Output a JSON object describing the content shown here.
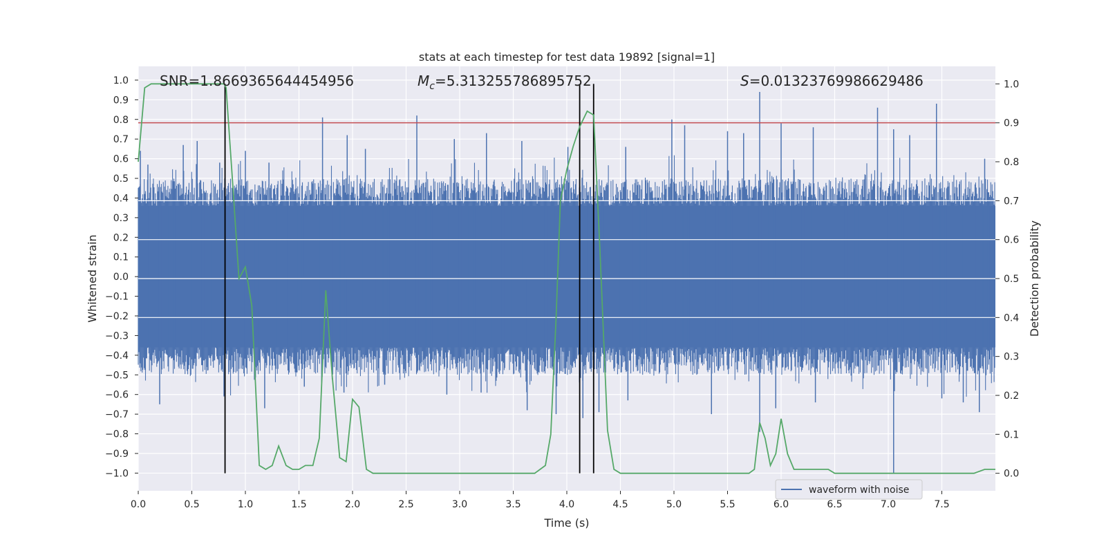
{
  "chart_data": {
    "type": "line",
    "title": "stats at each timestep for test data 19892 [signal=1]",
    "xlabel": "Time (s)",
    "ylabel": "Whitened strain",
    "y2label": "Detection probability",
    "xlim": [
      0.0,
      8.0
    ],
    "ylim": [
      -1.09,
      1.07
    ],
    "y2lim": [
      -0.045,
      1.045
    ],
    "xticks": [
      "0.0",
      "0.5",
      "1.0",
      "1.5",
      "2.0",
      "2.5",
      "3.0",
      "3.5",
      "4.0",
      "4.5",
      "5.0",
      "5.5",
      "6.0",
      "6.5",
      "7.0",
      "7.5"
    ],
    "yticks": [
      "1.0",
      "0.9",
      "0.8",
      "0.7",
      "0.6",
      "0.5",
      "0.4",
      "0.3",
      "0.2",
      "0.1",
      "0.0",
      "-0.1",
      "-0.2",
      "-0.3",
      "-0.4",
      "-0.5",
      "-0.6",
      "-0.7",
      "-0.8",
      "-0.9",
      "-1.0"
    ],
    "y2ticks": [
      "1.0",
      "0.9",
      "0.8",
      "0.7",
      "0.6",
      "0.5",
      "0.4",
      "0.3",
      "0.2",
      "0.1",
      "0.0"
    ],
    "annotations": {
      "snr": "SNR=1.8669365644454956",
      "mc_symbol": "M",
      "mc_sub": "c",
      "mc_value": "=5.313255786895752",
      "s_symbol": "S",
      "s_value": "=0.01323769986629486"
    },
    "legend": {
      "label": "waveform with noise",
      "position": "lower-right"
    },
    "threshold": {
      "value": 0.9,
      "color": "#c44e52"
    },
    "vlines": [
      0.81,
      4.12,
      4.25
    ],
    "waveform": {
      "name": "waveform with noise",
      "color": "#4c72b0",
      "core_envelope": 0.36,
      "peaks": [
        [
          0.02,
          0.64
        ],
        [
          0.09,
          0.57
        ],
        [
          0.2,
          -0.65
        ],
        [
          0.42,
          0.67
        ],
        [
          0.55,
          0.69
        ],
        [
          0.8,
          -0.61
        ],
        [
          0.76,
          0.58
        ],
        [
          1.0,
          0.64
        ],
        [
          1.18,
          -0.67
        ],
        [
          1.22,
          0.58
        ],
        [
          1.55,
          -0.56
        ],
        [
          1.72,
          0.81
        ],
        [
          1.95,
          0.72
        ],
        [
          1.92,
          -0.59
        ],
        [
          2.12,
          0.65
        ],
        [
          2.3,
          -0.55
        ],
        [
          2.6,
          0.82
        ],
        [
          2.88,
          -0.6
        ],
        [
          2.95,
          0.7
        ],
        [
          3.2,
          -0.59
        ],
        [
          3.25,
          0.73
        ],
        [
          3.58,
          0.69
        ],
        [
          3.63,
          -0.68
        ],
        [
          3.9,
          -0.7
        ],
        [
          4.01,
          0.66
        ],
        [
          4.15,
          -0.72
        ],
        [
          4.3,
          -0.69
        ],
        [
          4.57,
          -0.63
        ],
        [
          4.55,
          0.66
        ],
        [
          4.98,
          0.8
        ],
        [
          5.1,
          0.77
        ],
        [
          5.35,
          -0.7
        ],
        [
          5.5,
          0.74
        ],
        [
          5.65,
          0.73
        ],
        [
          5.8,
          0.94
        ],
        [
          5.8,
          -0.79
        ],
        [
          5.95,
          -0.67
        ],
        [
          6.0,
          0.78
        ],
        [
          6.3,
          0.76
        ],
        [
          6.32,
          -0.64
        ],
        [
          6.9,
          0.86
        ],
        [
          7.05,
          -1.0
        ],
        [
          7.05,
          0.75
        ],
        [
          7.2,
          0.72
        ],
        [
          7.45,
          0.88
        ],
        [
          7.5,
          -0.62
        ],
        [
          7.7,
          -0.64
        ],
        [
          7.85,
          -0.69
        ],
        [
          7.9,
          0.6
        ]
      ]
    },
    "probability": {
      "name": "detection probability",
      "color": "#55a868",
      "x": [
        0.0,
        0.06,
        0.12,
        0.2,
        0.4,
        0.6,
        0.8,
        0.82,
        0.88,
        0.94,
        1.0,
        1.06,
        1.13,
        1.19,
        1.25,
        1.31,
        1.38,
        1.44,
        1.5,
        1.56,
        1.63,
        1.69,
        1.75,
        1.81,
        1.88,
        1.94,
        2.0,
        2.06,
        2.13,
        2.19,
        2.3,
        2.5,
        2.7,
        2.85,
        3.0,
        3.2,
        3.4,
        3.6,
        3.7,
        3.75,
        3.8,
        3.85,
        3.9,
        3.94,
        4.0,
        4.06,
        4.12,
        4.19,
        4.25,
        4.31,
        4.38,
        4.44,
        4.5,
        4.6,
        4.8,
        5.0,
        5.2,
        5.4,
        5.6,
        5.7,
        5.75,
        5.8,
        5.85,
        5.9,
        5.95,
        6.0,
        6.06,
        6.12,
        6.19,
        6.25,
        6.31,
        6.38,
        6.44,
        6.5,
        6.6,
        6.8,
        7.0,
        7.2,
        7.4,
        7.6,
        7.8,
        7.9,
        8.0
      ],
      "y": [
        0.8,
        0.99,
        1.0,
        1.0,
        1.0,
        1.0,
        1.0,
        0.99,
        0.75,
        0.5,
        0.53,
        0.43,
        0.02,
        0.01,
        0.02,
        0.07,
        0.02,
        0.01,
        0.01,
        0.02,
        0.02,
        0.09,
        0.47,
        0.25,
        0.04,
        0.03,
        0.19,
        0.17,
        0.01,
        0.0,
        0.0,
        0.0,
        0.0,
        0.0,
        0.0,
        0.0,
        0.0,
        0.0,
        0.0,
        0.01,
        0.02,
        0.1,
        0.4,
        0.7,
        0.78,
        0.84,
        0.89,
        0.93,
        0.92,
        0.57,
        0.11,
        0.01,
        0.0,
        0.0,
        0.0,
        0.0,
        0.0,
        0.0,
        0.0,
        0.0,
        0.01,
        0.13,
        0.09,
        0.02,
        0.05,
        0.14,
        0.05,
        0.01,
        0.01,
        0.01,
        0.01,
        0.01,
        0.01,
        0.0,
        0.0,
        0.0,
        0.0,
        0.0,
        0.0,
        0.0,
        0.0,
        0.01,
        0.01
      ]
    }
  }
}
